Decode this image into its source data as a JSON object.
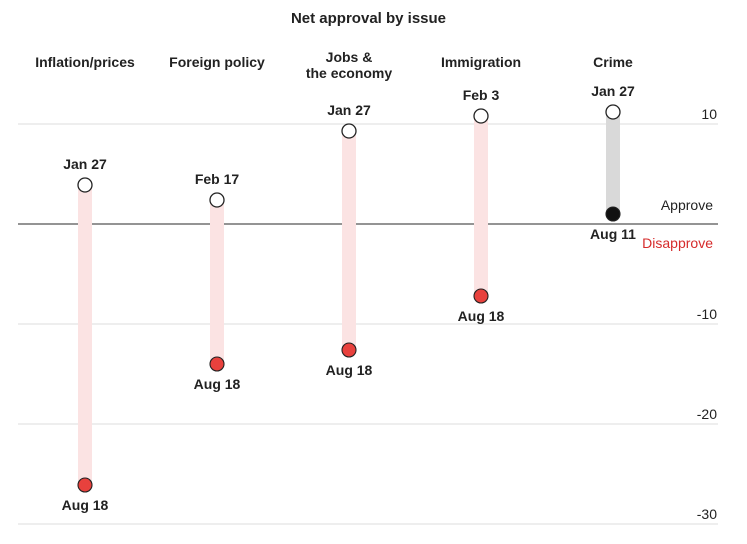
{
  "chart_data": {
    "type": "dumbbell",
    "title": "Net approval by issue",
    "yticks": [
      10,
      -10,
      -20,
      -30
    ],
    "ylim": [
      -30,
      10
    ],
    "reference_line": 0,
    "ref_labels": {
      "approve": "Approve",
      "disapprove": "Disapprove"
    },
    "colors": {
      "decline_bar": "#fbe3e3",
      "improve_bar": "#d9d9d9",
      "start_dot": "#ffffff",
      "end_dot_negative": "#e8413d",
      "end_dot_positive": "#111111",
      "disapprove_text": "#d62b2b",
      "approve_text": "#222222",
      "gridline": "#dddddd",
      "zero_line": "#555555"
    },
    "issues": [
      {
        "name": [
          "Inflation/prices"
        ],
        "start_label": "Jan 27",
        "start": 3.9,
        "end_label": "Aug 18",
        "end": -26.1
      },
      {
        "name": [
          "Foreign policy"
        ],
        "start_label": "Feb 17",
        "start": 2.4,
        "end_label": "Aug 18",
        "end": -14.0
      },
      {
        "name": [
          "Jobs &",
          "the economy"
        ],
        "start_label": "Jan 27",
        "start": 9.3,
        "end_label": "Aug 18",
        "end": -12.6
      },
      {
        "name": [
          "Immigration"
        ],
        "start_label": "Feb 3",
        "start": 10.8,
        "end_label": "Aug 18",
        "end": -7.2
      },
      {
        "name": [
          "Crime"
        ],
        "start_label": "Jan 27",
        "start": 11.2,
        "end_label": "Aug 11",
        "end": 1.0
      }
    ]
  }
}
